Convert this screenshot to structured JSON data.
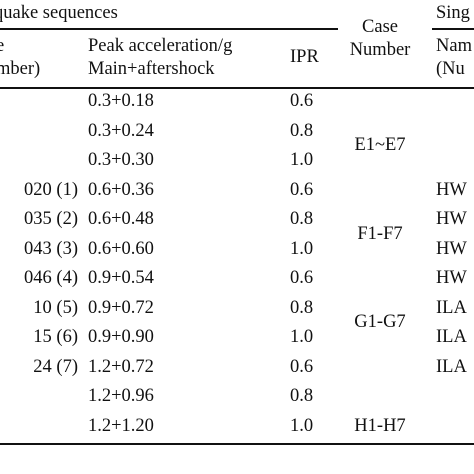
{
  "header": {
    "group_title": "quake sequences",
    "name_col_line1": "e",
    "name_col_line2": "mber)",
    "peak_line1": "Peak acceleration/g",
    "peak_line2": "Main+aftershock",
    "ipr": "IPR",
    "case_line1": "Case",
    "case_line2": "Number",
    "single_title": "Sing",
    "single_name": "Nam",
    "single_number": "(Nu"
  },
  "rows": [
    {
      "peak": "0.3+0.18",
      "ipr": "0.6"
    },
    {
      "peak": "0.3+0.24",
      "ipr": "0.8"
    },
    {
      "peak": "0.3+0.30",
      "ipr": "1.0"
    },
    {
      "peak": "0.6+0.36",
      "ipr": "0.6"
    },
    {
      "peak": "0.6+0.48",
      "ipr": "0.8"
    },
    {
      "peak": "0.6+0.60",
      "ipr": "1.0"
    },
    {
      "peak": "0.9+0.54",
      "ipr": "0.6"
    },
    {
      "peak": "0.9+0.72",
      "ipr": "0.8"
    },
    {
      "peak": "0.9+0.90",
      "ipr": "1.0"
    },
    {
      "peak": "1.2+0.72",
      "ipr": "0.6"
    },
    {
      "peak": "1.2+0.96",
      "ipr": "0.8"
    },
    {
      "peak": "1.2+1.20",
      "ipr": "1.0"
    }
  ],
  "seq_names": [
    "020 (1)",
    "035 (2)",
    "043 (3)",
    "046 (4)",
    "10 (5)",
    "15 (6)",
    "24 (7)"
  ],
  "cases": [
    "E1~E7",
    "F1-F7",
    "G1-G7",
    "H1-H7"
  ],
  "single_names": [
    "HW",
    "HW",
    "HW",
    "HW",
    "ILA",
    "ILA",
    "ILA"
  ]
}
